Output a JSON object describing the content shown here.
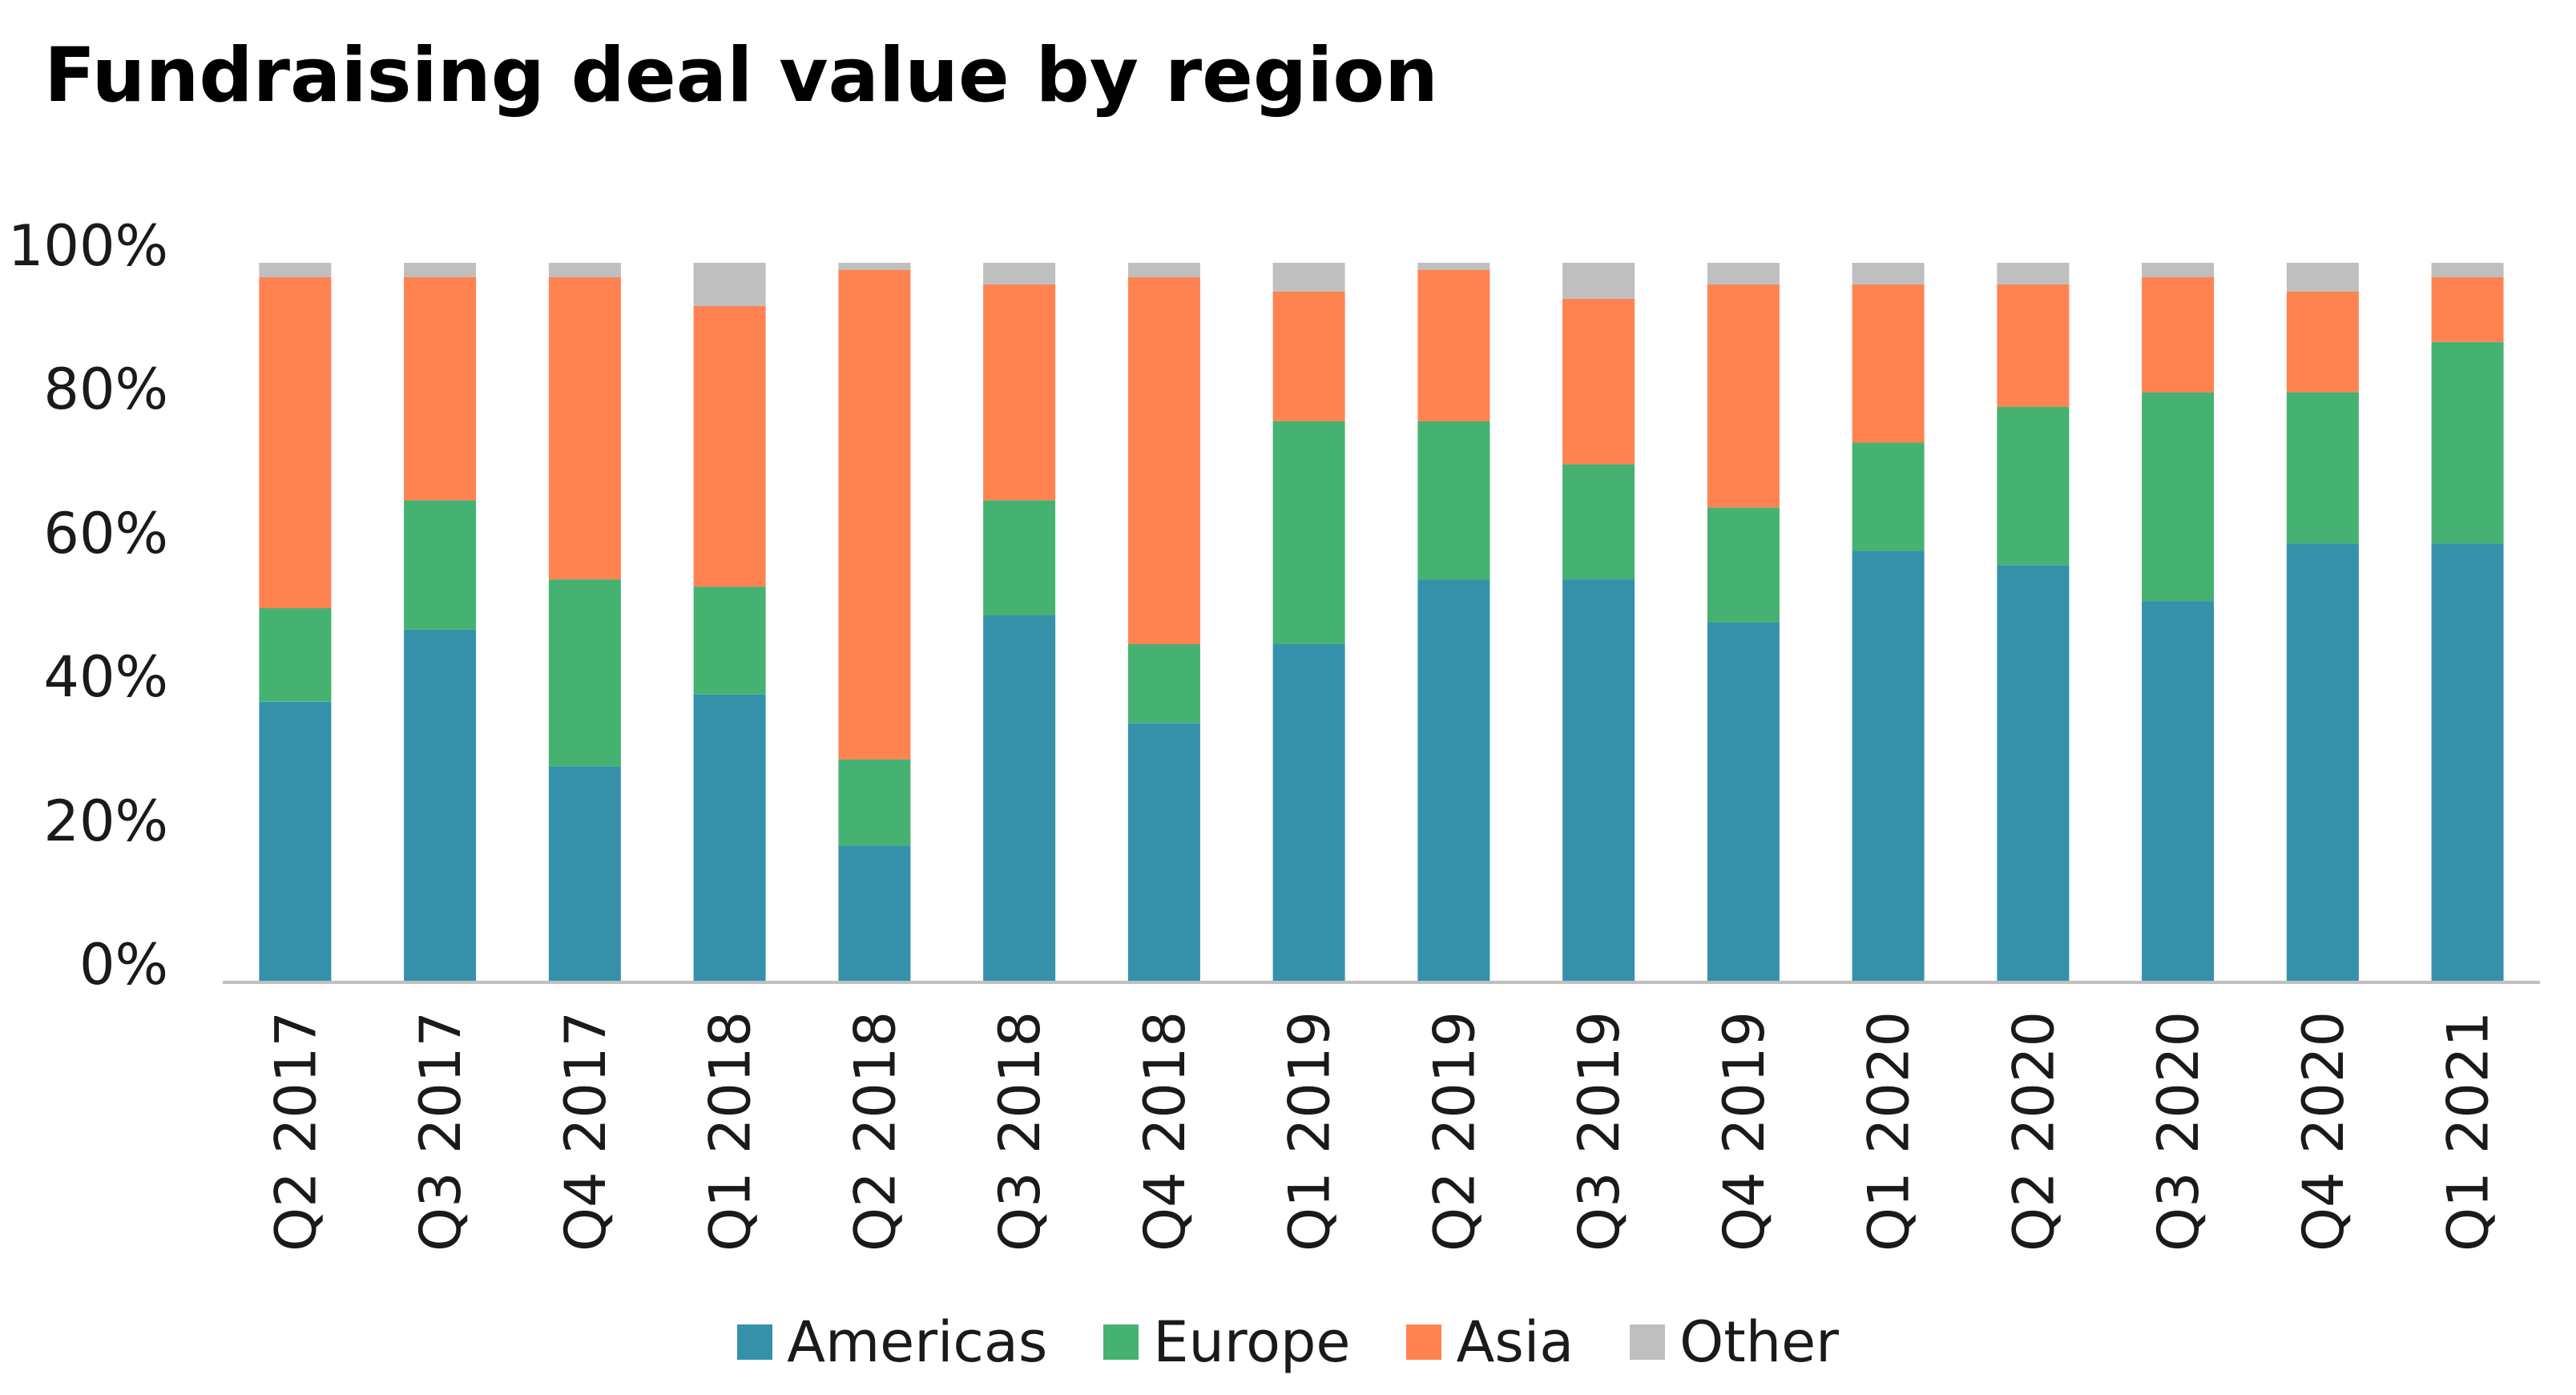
{
  "chart_data": {
    "type": "bar",
    "stacked": true,
    "title": "Fundraising deal value by region",
    "xlabel": "",
    "ylabel": "",
    "ylim": [
      0,
      100
    ],
    "yticks": [
      "0%",
      "20%",
      "40%",
      "60%",
      "80%",
      "100%"
    ],
    "grid": false,
    "legend_position": "bottom",
    "categories": [
      "Q2 2017",
      "Q3 2017",
      "Q4 2017",
      "Q1 2018",
      "Q2 2018",
      "Q3 2018",
      "Q4 2018",
      "Q1 2019",
      "Q2 2019",
      "Q3 2019",
      "Q4 2019",
      "Q1 2020",
      "Q2 2020",
      "Q3 2020",
      "Q4 2020",
      "Q1 2021"
    ],
    "series": [
      {
        "name": "Americas",
        "color": "#3591AA",
        "values": [
          39,
          49,
          30,
          40,
          19,
          51,
          36,
          47,
          56,
          56,
          50,
          60,
          58,
          53,
          61,
          61
        ]
      },
      {
        "name": "Europe",
        "color": "#45B272",
        "values": [
          13,
          18,
          26,
          15,
          12,
          16,
          11,
          31,
          22,
          16,
          16,
          15,
          22,
          29,
          21,
          28
        ]
      },
      {
        "name": "Asia",
        "color": "#FF8351",
        "values": [
          46,
          31,
          42,
          39,
          68,
          30,
          51,
          18,
          21,
          23,
          31,
          22,
          17,
          16,
          14,
          9
        ]
      },
      {
        "name": "Other",
        "color": "#BFBFBF",
        "values": [
          2,
          2,
          2,
          6,
          1,
          3,
          2,
          4,
          1,
          5,
          3,
          3,
          3,
          2,
          4,
          2
        ]
      }
    ]
  }
}
